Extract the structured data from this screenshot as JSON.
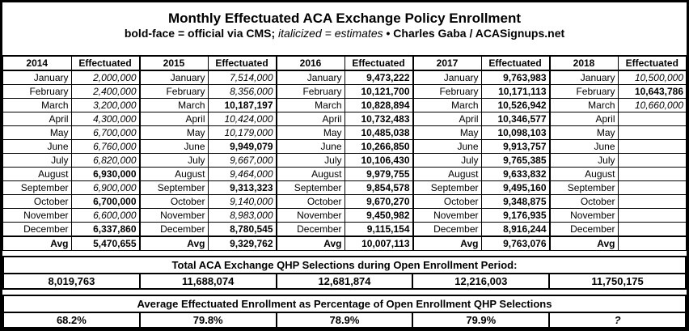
{
  "header": {
    "title": "Monthly Effectuated ACA Exchange Policy Enrollment",
    "legend_bold": "bold-face = official via CMS;",
    "legend_italic": "italicized = estimates",
    "bullet": "•",
    "credit": "Charles Gaba / ACASignups.net"
  },
  "chart_data": {
    "type": "table",
    "title": "Monthly Effectuated ACA Exchange Policy Enrollment",
    "effectuated_label": "Effectuated",
    "avg_label": "Avg",
    "months": [
      "January",
      "February",
      "March",
      "April",
      "May",
      "June",
      "July",
      "August",
      "September",
      "October",
      "November",
      "December"
    ],
    "years": [
      {
        "year": "2014",
        "values": [
          "2,000,000",
          "2,400,000",
          "3,200,000",
          "4,300,000",
          "6,700,000",
          "6,760,000",
          "6,820,000",
          "6,930,000",
          "6,900,000",
          "6,700,000",
          "6,600,000",
          "6,337,860"
        ],
        "styles": [
          "i",
          "i",
          "i",
          "i",
          "i",
          "i",
          "i",
          "b",
          "i",
          "b",
          "i",
          "b"
        ],
        "avg": "5,470,655"
      },
      {
        "year": "2015",
        "values": [
          "7,514,000",
          "8,356,000",
          "10,187,197",
          "10,424,000",
          "10,179,000",
          "9,949,079",
          "9,667,000",
          "9,464,000",
          "9,313,323",
          "9,140,000",
          "8,983,000",
          "8,780,545"
        ],
        "styles": [
          "i",
          "i",
          "b",
          "i",
          "i",
          "b",
          "i",
          "i",
          "b",
          "i",
          "i",
          "b"
        ],
        "avg": "9,329,762"
      },
      {
        "year": "2016",
        "values": [
          "9,473,222",
          "10,121,700",
          "10,828,894",
          "10,732,483",
          "10,485,038",
          "10,266,850",
          "10,106,430",
          "9,979,755",
          "9,854,578",
          "9,670,270",
          "9,450,982",
          "9,115,154"
        ],
        "styles": [
          "b",
          "b",
          "b",
          "b",
          "b",
          "b",
          "b",
          "b",
          "b",
          "b",
          "b",
          "b"
        ],
        "avg": "10,007,113"
      },
      {
        "year": "2017",
        "values": [
          "9,763,983",
          "10,171,113",
          "10,526,942",
          "10,346,577",
          "10,098,103",
          "9,913,757",
          "9,765,385",
          "9,633,832",
          "9,495,160",
          "9,348,875",
          "9,176,935",
          "8,916,244"
        ],
        "styles": [
          "b",
          "b",
          "b",
          "b",
          "b",
          "b",
          "b",
          "b",
          "b",
          "b",
          "b",
          "b"
        ],
        "avg": "9,763,076"
      },
      {
        "year": "2018",
        "values": [
          "10,500,000",
          "10,643,786",
          "10,660,000",
          "",
          "",
          "",
          "",
          "",
          "",
          "",
          "",
          ""
        ],
        "styles": [
          "i",
          "b",
          "i",
          "",
          "",
          "",
          "",
          "",
          "",
          "",
          "",
          ""
        ],
        "avg": ""
      }
    ],
    "qhp_section": {
      "title": "Total ACA Exchange QHP Selections during Open Enrollment Period:",
      "values": [
        "8,019,763",
        "11,688,074",
        "12,681,874",
        "12,216,003",
        "11,750,175"
      ],
      "styles": [
        "b",
        "b",
        "b",
        "b",
        "b"
      ]
    },
    "pct_section": {
      "title": "Average Effectuated Enrollment as Percentage of Open Enrollment QHP Selections",
      "values": [
        "68.2%",
        "79.8%",
        "78.9%",
        "79.9%",
        "?"
      ],
      "styles": [
        "b",
        "b",
        "b",
        "b",
        "i"
      ]
    }
  }
}
